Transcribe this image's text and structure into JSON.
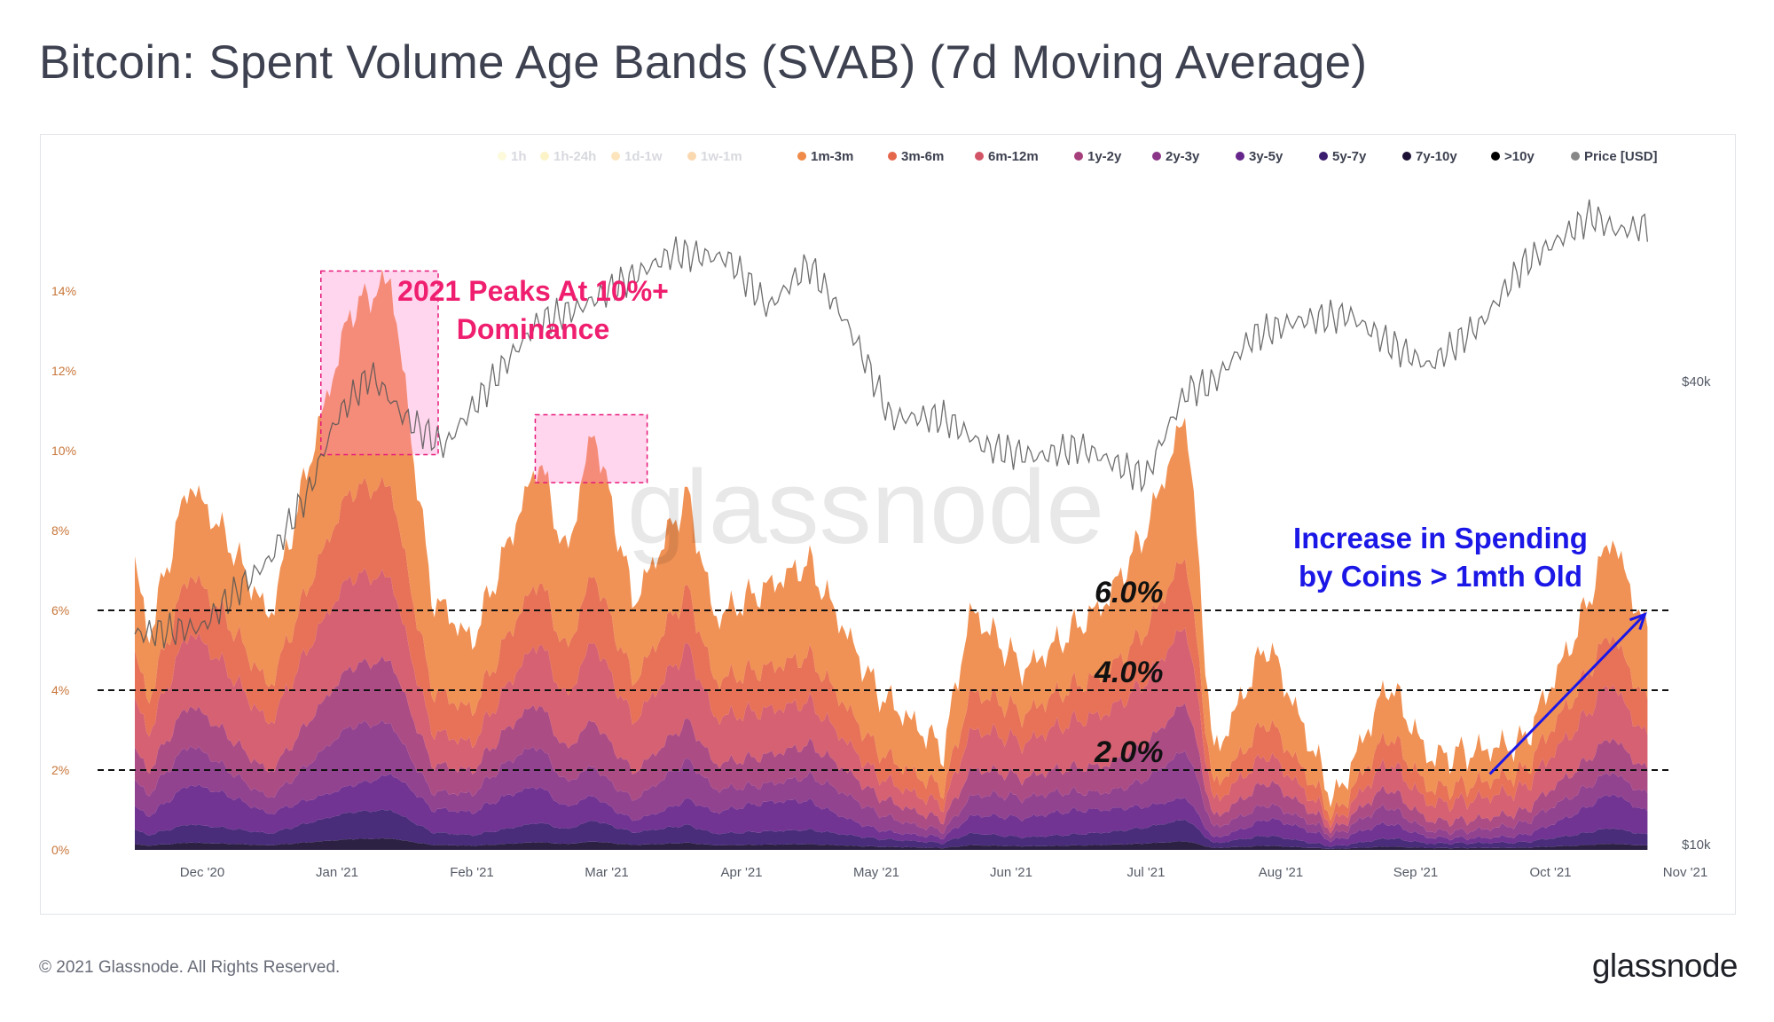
{
  "title": "Bitcoin: Spent Volume Age Bands (SVAB) (7d Moving Average)",
  "footer": {
    "copyright": "© 2021 Glassnode. All Rights Reserved.",
    "brand": "glassnode"
  },
  "watermark": "glassnode",
  "chart_data": {
    "type": "area",
    "stacked": true,
    "x_ticks": [
      "Dec '20",
      "Jan '21",
      "Feb '21",
      "Mar '21",
      "Apr '21",
      "May '21",
      "Jun '21",
      "Jul '21",
      "Aug '21",
      "Sep '21",
      "Oct '21",
      "Nov '21"
    ],
    "y_left": {
      "ticks": [
        "0%",
        "2%",
        "4%",
        "6%",
        "8%",
        "10%",
        "12%",
        "14%"
      ],
      "range": [
        0,
        14
      ]
    },
    "y_right": {
      "ticks": [
        "$10k",
        "$40k"
      ],
      "scale": "log"
    },
    "legend": [
      {
        "name": "1h",
        "color": "#fbf3b1",
        "active": false
      },
      {
        "name": "1h-24h",
        "color": "#f8e487",
        "active": false
      },
      {
        "name": "1d-1w",
        "color": "#f8c66a",
        "active": false
      },
      {
        "name": "1w-1m",
        "color": "#f4a94f",
        "active": false
      },
      {
        "name": "1m-3m",
        "color": "#ef8a48",
        "active": true
      },
      {
        "name": "3m-6m",
        "color": "#e5674b",
        "active": true
      },
      {
        "name": "6m-12m",
        "color": "#d25567",
        "active": true
      },
      {
        "name": "1y-2y",
        "color": "#a63e7c",
        "active": true
      },
      {
        "name": "2y-3y",
        "color": "#8a3587",
        "active": true
      },
      {
        "name": "3y-5y",
        "color": "#66258a",
        "active": true
      },
      {
        "name": "5y-7y",
        "color": "#3b1d70",
        "active": true
      },
      {
        "name": "7y-10y",
        "color": "#1d1035",
        "active": true
      },
      {
        "name": ">10y",
        "color": "#000000",
        "active": true
      },
      {
        "name": "Price [USD]",
        "color": "#888888",
        "active": true
      }
    ],
    "total_active_percent_approx": [
      {
        "m": 0,
        "v": 7.2
      },
      {
        "m": 0.1,
        "v": 5.3
      },
      {
        "m": 0.4,
        "v": 9.2
      },
      {
        "m": 0.7,
        "v": 7.7
      },
      {
        "m": 1.0,
        "v": 5.8
      },
      {
        "m": 1.3,
        "v": 9.8
      },
      {
        "m": 1.6,
        "v": 13.5
      },
      {
        "m": 1.9,
        "v": 14.3
      },
      {
        "m": 2.2,
        "v": 6.4
      },
      {
        "m": 2.5,
        "v": 5.2
      },
      {
        "m": 3.0,
        "v": 9.8
      },
      {
        "m": 3.2,
        "v": 7.3
      },
      {
        "m": 3.4,
        "v": 10.6
      },
      {
        "m": 3.7,
        "v": 6.2
      },
      {
        "m": 4.1,
        "v": 8.9
      },
      {
        "m": 4.3,
        "v": 5.8
      },
      {
        "m": 5.0,
        "v": 7.2
      },
      {
        "m": 5.5,
        "v": 4.0
      },
      {
        "m": 6.0,
        "v": 2.5
      },
      {
        "m": 6.2,
        "v": 6.0
      },
      {
        "m": 6.6,
        "v": 4.5
      },
      {
        "m": 7.2,
        "v": 6.2
      },
      {
        "m": 7.5,
        "v": 8.0
      },
      {
        "m": 7.8,
        "v": 11.0
      },
      {
        "m": 8.0,
        "v": 2.3
      },
      {
        "m": 8.4,
        "v": 5.2
      },
      {
        "m": 8.9,
        "v": 1.2
      },
      {
        "m": 9.3,
        "v": 4.2
      },
      {
        "m": 9.6,
        "v": 2.3
      },
      {
        "m": 10.0,
        "v": 2.5
      },
      {
        "m": 10.3,
        "v": 2.7
      },
      {
        "m": 10.7,
        "v": 5.5
      },
      {
        "m": 10.95,
        "v": 7.9
      },
      {
        "m": 11.2,
        "v": 5.5
      }
    ],
    "price_usd_approx": [
      {
        "m": 0,
        "v": 18800
      },
      {
        "m": 0.5,
        "v": 19200
      },
      {
        "m": 1.0,
        "v": 23500
      },
      {
        "m": 1.3,
        "v": 29000
      },
      {
        "m": 1.5,
        "v": 36000
      },
      {
        "m": 1.75,
        "v": 41000
      },
      {
        "m": 2.0,
        "v": 36000
      },
      {
        "m": 2.3,
        "v": 33000
      },
      {
        "m": 2.6,
        "v": 39000
      },
      {
        "m": 3.0,
        "v": 48000
      },
      {
        "m": 3.3,
        "v": 50000
      },
      {
        "m": 3.7,
        "v": 55000
      },
      {
        "m": 4.0,
        "v": 59000
      },
      {
        "m": 4.4,
        "v": 58000
      },
      {
        "m": 4.7,
        "v": 50000
      },
      {
        "m": 5.0,
        "v": 57000
      },
      {
        "m": 5.3,
        "v": 47000
      },
      {
        "m": 5.6,
        "v": 36000
      },
      {
        "m": 6.0,
        "v": 36000
      },
      {
        "m": 6.3,
        "v": 33000
      },
      {
        "m": 6.7,
        "v": 32000
      },
      {
        "m": 7.0,
        "v": 33000
      },
      {
        "m": 7.5,
        "v": 30000
      },
      {
        "m": 7.8,
        "v": 39000
      },
      {
        "m": 8.0,
        "v": 40000
      },
      {
        "m": 8.3,
        "v": 46000
      },
      {
        "m": 8.6,
        "v": 48000
      },
      {
        "m": 9.0,
        "v": 49000
      },
      {
        "m": 9.3,
        "v": 45000
      },
      {
        "m": 9.6,
        "v": 42000
      },
      {
        "m": 10.0,
        "v": 48000
      },
      {
        "m": 10.3,
        "v": 57000
      },
      {
        "m": 10.6,
        "v": 62000
      },
      {
        "m": 10.8,
        "v": 66000
      },
      {
        "m": 11.0,
        "v": 63000
      },
      {
        "m": 11.2,
        "v": 64000
      }
    ],
    "reference_lines": [
      {
        "label": "6.0%",
        "value": 6.0
      },
      {
        "label": "4.0%",
        "value": 4.0
      },
      {
        "label": "2.0%",
        "value": 2.0
      }
    ],
    "annotations": {
      "peaks_text": [
        "2021 Peaks At 10%+",
        "Dominance"
      ],
      "spending_text": [
        "Increase in Spending",
        "by Coins > 1mth Old"
      ],
      "peak_boxes": [
        {
          "from_month": 1.38,
          "to_month": 2.25,
          "from_pct": 9.9,
          "to_pct": 14.5
        },
        {
          "from_month": 2.97,
          "to_month": 3.8,
          "from_pct": 9.2,
          "to_pct": 10.9
        }
      ],
      "arrow": {
        "from_month": 10.05,
        "from_pct": 1.9,
        "to_month": 11.2,
        "to_pct": 5.9
      }
    }
  }
}
